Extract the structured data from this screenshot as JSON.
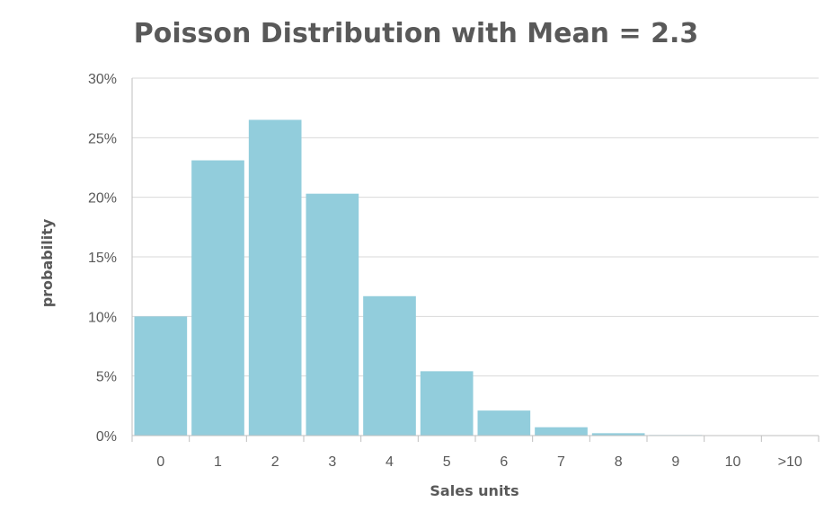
{
  "chart_data": {
    "type": "bar",
    "title": "Poisson Distribution with Mean = 2.3",
    "xlabel": "Sales units",
    "ylabel": "probability",
    "categories": [
      "0",
      "1",
      "2",
      "3",
      "4",
      "5",
      "6",
      "7",
      "8",
      "9",
      "10",
      ">10"
    ],
    "values": [
      0.1,
      0.231,
      0.265,
      0.203,
      0.117,
      0.054,
      0.021,
      0.007,
      0.002,
      0.0005,
      0.0001,
      0.0
    ],
    "ylim": [
      0,
      0.3
    ],
    "yticks": [
      0,
      0.05,
      0.1,
      0.15,
      0.2,
      0.25,
      0.3
    ],
    "ytick_labels": [
      "0%",
      "5%",
      "10%",
      "15%",
      "20%",
      "25%",
      "30%"
    ],
    "grid": true,
    "bar_color": "#92cddc"
  }
}
